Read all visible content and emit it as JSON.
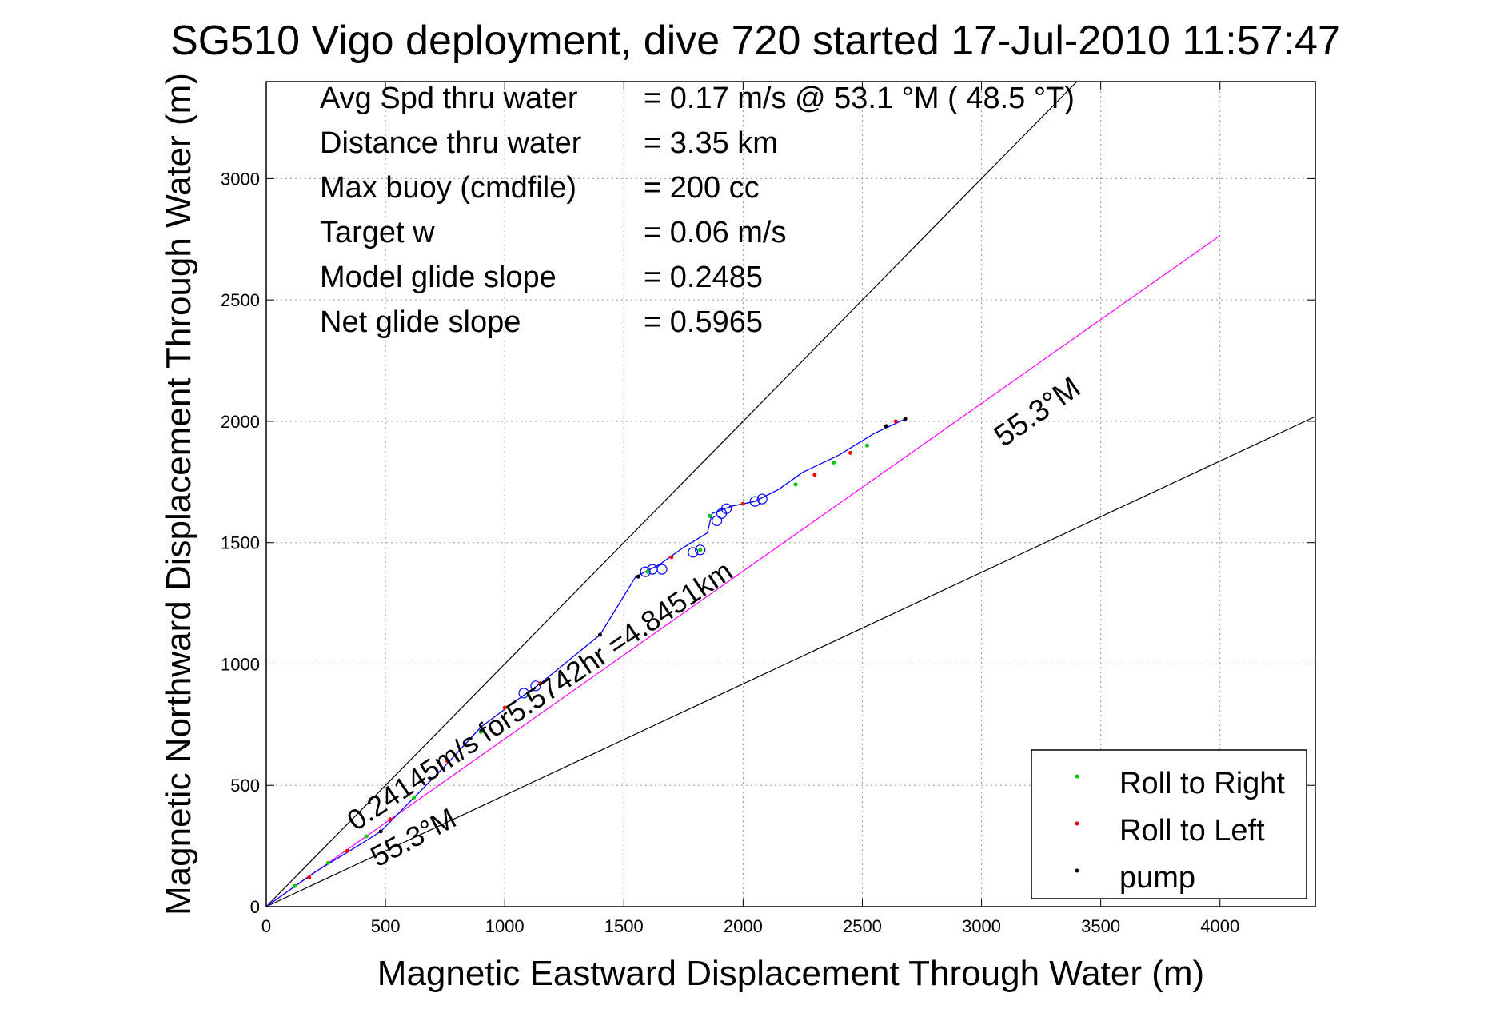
{
  "title": "SG510 Vigo deployment, dive 720 started 17-Jul-2010 11:57:47",
  "stats": [
    {
      "label": "Avg Spd thru water",
      "value": "=  0.17 m/s @  53.1 °M ( 48.5 °T)"
    },
    {
      "label": "Distance thru water",
      "value": "=  3.35 km"
    },
    {
      "label": "Max buoy (cmdfile)",
      "value": "= 200 cc"
    },
    {
      "label": "Target w",
      "value": "= 0.06 m/s"
    },
    {
      "label": "Model glide slope",
      "value": "= 0.2485"
    },
    {
      "label": "Net glide slope",
      "value": "= 0.5965"
    }
  ],
  "annotations": {
    "upper_heading": "55.3°M",
    "lower_heading": "55.3°M",
    "speed_note": "0.24145m/s for5.5742hr =4.8451km"
  },
  "colors": {
    "track": "#0000ff",
    "roll_right": "#00c800",
    "roll_left": "#ff0000",
    "pump": "#000000",
    "heading_line": "#ff00ff",
    "wedge_lines": "#000000",
    "grid": "#999999"
  },
  "chart_data": {
    "type": "scatter",
    "xlabel": "Magnetic Eastward Displacement Through Water (m)",
    "ylabel": "Magnetic Northward Displacement Through Water (m)",
    "xlim": [
      0,
      4400
    ],
    "ylim": [
      0,
      3400
    ],
    "xticks": [
      0,
      500,
      1000,
      1500,
      2000,
      2500,
      3000,
      3500,
      4000
    ],
    "yticks": [
      0,
      500,
      1000,
      1500,
      2000,
      2500,
      3000
    ],
    "grid": true,
    "legend_position": "bottom-right",
    "legend": [
      "Roll to Right",
      "Roll to Left",
      "pump"
    ],
    "track": {
      "x": [
        0,
        100,
        200,
        300,
        400,
        480,
        600,
        750,
        900,
        1050,
        1150,
        1250,
        1400,
        1550,
        1650,
        1750,
        1850,
        1870,
        1950,
        2050,
        2150,
        2250,
        2400,
        2550,
        2680
      ],
      "y": [
        0,
        70,
        140,
        200,
        260,
        310,
        430,
        580,
        740,
        850,
        920,
        1000,
        1120,
        1360,
        1410,
        1480,
        1540,
        1620,
        1650,
        1670,
        1720,
        1790,
        1860,
        1950,
        2010
      ]
    },
    "circles": {
      "x": [
        1080,
        1130,
        1590,
        1620,
        1660,
        1790,
        1820,
        1890,
        1910,
        1930,
        2050,
        2080
      ],
      "y": [
        880,
        910,
        1380,
        1390,
        1390,
        1460,
        1470,
        1590,
        1620,
        1640,
        1670,
        1680
      ]
    },
    "roll_right": {
      "x": [
        120,
        260,
        420,
        620,
        900,
        1100,
        1600,
        1820,
        1860,
        2220,
        2380,
        2520,
        2600
      ],
      "y": [
        85,
        180,
        290,
        450,
        720,
        870,
        1380,
        1470,
        1610,
        1740,
        1830,
        1900,
        1980
      ]
    },
    "roll_left": {
      "x": [
        180,
        340,
        520,
        760,
        1000,
        1150,
        1700,
        2000,
        2300,
        2450,
        2640
      ],
      "y": [
        120,
        230,
        360,
        600,
        820,
        920,
        1440,
        1660,
        1780,
        1870,
        2000
      ]
    },
    "pump": {
      "x": [
        480,
        1400,
        1560,
        2600,
        2680
      ],
      "y": [
        310,
        1120,
        1360,
        1980,
        2010
      ]
    },
    "heading_line": {
      "x": [
        0,
        4000
      ],
      "y": [
        0,
        2765
      ]
    },
    "wedge_upper": {
      "x": [
        0,
        3400
      ],
      "y": [
        0,
        3400
      ]
    },
    "wedge_lower": {
      "x": [
        0,
        4400
      ],
      "y": [
        0,
        2020
      ]
    }
  }
}
